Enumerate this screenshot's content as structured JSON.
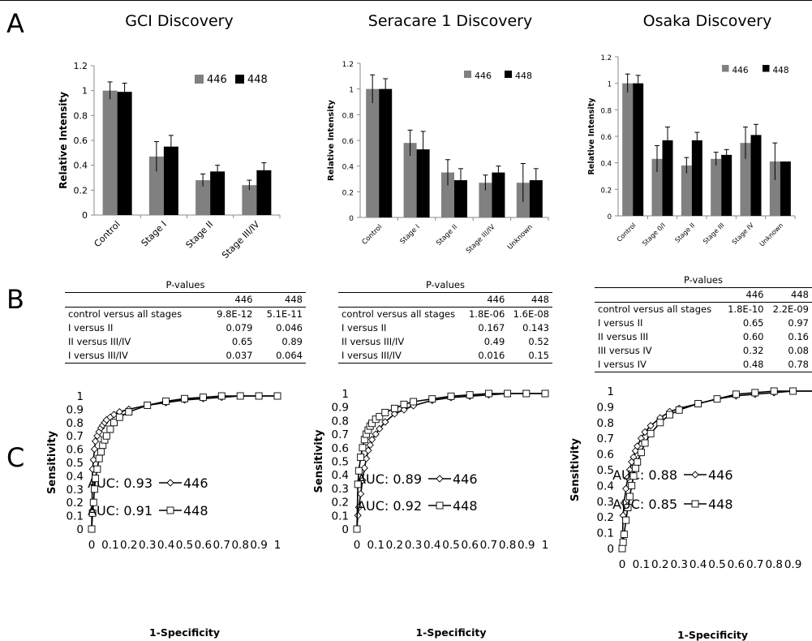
{
  "panels": {
    "A": "A",
    "B": "B",
    "C": "C"
  },
  "chart_data": [
    {
      "type": "bar",
      "title": "GCI Discovery",
      "ylabel": "Relative Intensity",
      "categories": [
        "Control",
        "Stage I",
        "Stage II",
        "Stage III/IV"
      ],
      "ylim": [
        0,
        1.2
      ],
      "yticks": [
        "0",
        "0.2",
        "0.4",
        "0.6",
        "0.8",
        "1",
        "1.2"
      ],
      "series": [
        {
          "name": "446",
          "color": "#808080",
          "values": [
            1.0,
            0.47,
            0.28,
            0.24
          ],
          "errors": [
            0.07,
            0.12,
            0.05,
            0.04
          ]
        },
        {
          "name": "448",
          "color": "#000000",
          "values": [
            0.99,
            0.55,
            0.35,
            0.36
          ],
          "errors": [
            0.07,
            0.09,
            0.05,
            0.06
          ]
        }
      ],
      "legend": "top-right"
    },
    {
      "type": "bar",
      "title": "Seracare 1 Discovery",
      "ylabel": "Relative Intensity",
      "categories": [
        "Control",
        "Stage I",
        "Stage II",
        "Stage III/IV",
        "Unknown"
      ],
      "ylim": [
        0,
        1.2
      ],
      "yticks": [
        "0",
        "0.2",
        "0.4",
        "0.6",
        "0.8",
        "1",
        "1.2"
      ],
      "series": [
        {
          "name": "446",
          "color": "#808080",
          "values": [
            1.0,
            0.58,
            0.35,
            0.27,
            0.27
          ],
          "errors": [
            0.11,
            0.1,
            0.1,
            0.06,
            0.15
          ]
        },
        {
          "name": "448",
          "color": "#000000",
          "values": [
            1.0,
            0.53,
            0.29,
            0.35,
            0.29
          ],
          "errors": [
            0.08,
            0.14,
            0.09,
            0.05,
            0.09
          ]
        }
      ],
      "legend": "top-right"
    },
    {
      "type": "bar",
      "title": "Osaka Discovery",
      "ylabel": "Relative Intensity",
      "categories": [
        "Control",
        "Stage 0/I",
        "Stage II",
        "Stage III",
        "Stage IV",
        "Unknown"
      ],
      "ylim": [
        0,
        1.2
      ],
      "yticks": [
        "0",
        "0.2",
        "0.4",
        "0.6",
        "0.8",
        "1",
        "1.2"
      ],
      "series": [
        {
          "name": "446",
          "color": "#808080",
          "values": [
            1.0,
            0.43,
            0.38,
            0.43,
            0.55,
            0.41
          ],
          "errors": [
            0.07,
            0.1,
            0.06,
            0.05,
            0.12,
            0.14
          ]
        },
        {
          "name": "448",
          "color": "#000000",
          "values": [
            1.0,
            0.57,
            0.57,
            0.46,
            0.61,
            0.41
          ],
          "errors": [
            0.06,
            0.1,
            0.06,
            0.04,
            0.08,
            0.0
          ]
        }
      ],
      "legend": "top-right"
    },
    {
      "type": "line",
      "xlabel": "1-Specificity",
      "ylabel": "Sensitivity",
      "xlim": [
        0,
        1
      ],
      "ylim": [
        0,
        1
      ],
      "xticks": [
        "0",
        "0.1",
        "0.2",
        "0.3",
        "0.4",
        "0.5",
        "0.6",
        "0.7",
        "0.8",
        "0.9",
        "1"
      ],
      "yticks": [
        "0",
        "0.1",
        "0.2",
        "0.3",
        "0.4",
        "0.5",
        "0.6",
        "0.7",
        "0.8",
        "0.9",
        "1"
      ],
      "series": [
        {
          "name": "446",
          "marker": "diamond",
          "auc_label": "AUC: 0.93",
          "x": [
            0,
            0.005,
            0.01,
            0.015,
            0.02,
            0.03,
            0.04,
            0.05,
            0.06,
            0.07,
            0.08,
            0.1,
            0.12,
            0.15,
            0.2,
            0.3,
            0.4,
            0.5,
            0.6,
            0.7,
            0.8,
            0.9,
            1
          ],
          "y": [
            0,
            0.45,
            0.52,
            0.6,
            0.66,
            0.7,
            0.73,
            0.76,
            0.78,
            0.8,
            0.82,
            0.84,
            0.86,
            0.88,
            0.9,
            0.93,
            0.95,
            0.97,
            0.98,
            0.99,
            1.0,
            1.0,
            1.0
          ]
        },
        {
          "name": "448",
          "marker": "square",
          "auc_label": "AUC: 0.91",
          "x": [
            0,
            0.005,
            0.01,
            0.015,
            0.02,
            0.03,
            0.04,
            0.05,
            0.06,
            0.07,
            0.08,
            0.1,
            0.12,
            0.15,
            0.2,
            0.3,
            0.4,
            0.5,
            0.6,
            0.7,
            0.8,
            0.9,
            1
          ],
          "y": [
            0,
            0.12,
            0.2,
            0.3,
            0.38,
            0.45,
            0.53,
            0.58,
            0.63,
            0.67,
            0.7,
            0.75,
            0.8,
            0.84,
            0.88,
            0.93,
            0.96,
            0.98,
            0.99,
            1.0,
            1.0,
            1.0,
            1.0
          ]
        }
      ]
    },
    {
      "type": "line",
      "xlabel": "1-Specificity",
      "ylabel": "Sensitivity",
      "xlim": [
        0,
        1
      ],
      "ylim": [
        0,
        1
      ],
      "xticks": [
        "0",
        "0.1",
        "0.2",
        "0.3",
        "0.4",
        "0.5",
        "0.6",
        "0.7",
        "0.8",
        "0.9",
        "1"
      ],
      "yticks": [
        "0",
        "0.1",
        "0.2",
        "0.3",
        "0.4",
        "0.5",
        "0.6",
        "0.7",
        "0.8",
        "0.9",
        "1"
      ],
      "series": [
        {
          "name": "446",
          "marker": "diamond",
          "auc_label": "AUC: 0.89",
          "x": [
            0,
            0.005,
            0.01,
            0.02,
            0.03,
            0.04,
            0.05,
            0.06,
            0.07,
            0.08,
            0.1,
            0.12,
            0.15,
            0.2,
            0.25,
            0.3,
            0.4,
            0.5,
            0.6,
            0.7,
            0.8,
            0.9,
            1
          ],
          "y": [
            0,
            0.1,
            0.16,
            0.26,
            0.36,
            0.45,
            0.52,
            0.58,
            0.62,
            0.66,
            0.7,
            0.74,
            0.79,
            0.85,
            0.88,
            0.91,
            0.95,
            0.97,
            0.98,
            0.99,
            1.0,
            1.0,
            1.0
          ]
        },
        {
          "name": "448",
          "marker": "square",
          "auc_label": "AUC: 0.92",
          "x": [
            0,
            0.005,
            0.01,
            0.02,
            0.03,
            0.04,
            0.05,
            0.06,
            0.07,
            0.08,
            0.1,
            0.12,
            0.15,
            0.2,
            0.25,
            0.3,
            0.4,
            0.5,
            0.6,
            0.7,
            0.8,
            0.9,
            1
          ],
          "y": [
            0,
            0.33,
            0.43,
            0.53,
            0.6,
            0.66,
            0.7,
            0.73,
            0.76,
            0.78,
            0.81,
            0.83,
            0.86,
            0.89,
            0.92,
            0.94,
            0.96,
            0.98,
            0.99,
            1.0,
            1.0,
            1.0,
            1.0
          ]
        }
      ]
    },
    {
      "type": "line",
      "xlabel": "1-Specificity",
      "ylabel": "Sensitivity",
      "xlim": [
        0,
        1
      ],
      "ylim": [
        0,
        1
      ],
      "xticks": [
        "0",
        "0.1",
        "0.2",
        "0.3",
        "0.4",
        "0.5",
        "0.6",
        "0.7",
        "0.8",
        "0.9"
      ],
      "yticks": [
        "0",
        "0.1",
        "0.2",
        "0.3",
        "0.4",
        "0.5",
        "0.6",
        "0.7",
        "0.8",
        "0.9",
        "1"
      ],
      "series": [
        {
          "name": "446",
          "marker": "diamond",
          "auc_label": "AUC: 0.88",
          "x": [
            0,
            0.005,
            0.01,
            0.02,
            0.03,
            0.04,
            0.05,
            0.06,
            0.07,
            0.08,
            0.1,
            0.12,
            0.15,
            0.2,
            0.25,
            0.3,
            0.4,
            0.5,
            0.6,
            0.7,
            0.8,
            0.9,
            1
          ],
          "y": [
            0,
            0.21,
            0.29,
            0.38,
            0.45,
            0.5,
            0.55,
            0.58,
            0.62,
            0.65,
            0.7,
            0.74,
            0.78,
            0.83,
            0.87,
            0.89,
            0.92,
            0.95,
            0.97,
            0.98,
            0.99,
            1.0,
            1.0
          ]
        },
        {
          "name": "448",
          "marker": "square",
          "auc_label": "AUC: 0.85",
          "x": [
            0,
            0.005,
            0.01,
            0.02,
            0.03,
            0.04,
            0.05,
            0.06,
            0.07,
            0.08,
            0.1,
            0.12,
            0.15,
            0.2,
            0.25,
            0.3,
            0.4,
            0.5,
            0.6,
            0.7,
            0.8,
            0.9,
            1
          ],
          "y": [
            0,
            0.04,
            0.09,
            0.18,
            0.26,
            0.33,
            0.4,
            0.46,
            0.51,
            0.55,
            0.61,
            0.67,
            0.73,
            0.8,
            0.85,
            0.88,
            0.92,
            0.95,
            0.98,
            0.99,
            1.0,
            1.0,
            1.0
          ]
        }
      ]
    }
  ],
  "pvalue_tables": [
    {
      "caption": "P-values",
      "columns": [
        "",
        "446",
        "448"
      ],
      "rows": [
        [
          "control versus all stages",
          "9.8E-12",
          "5.1E-11"
        ],
        [
          "I versus II",
          "0.079",
          "0.046"
        ],
        [
          "II versus III/IV",
          "0.65",
          "0.89"
        ],
        [
          "I versus III/IV",
          "0.037",
          "0.064"
        ]
      ]
    },
    {
      "caption": "P-values",
      "columns": [
        "",
        "446",
        "448"
      ],
      "rows": [
        [
          "control versus all stages",
          "1.8E-06",
          "1.6E-08"
        ],
        [
          "I versus II",
          "0.167",
          "0.143"
        ],
        [
          "II versus III/IV",
          "0.49",
          "0.52"
        ],
        [
          "I versus III/IV",
          "0.016",
          "0.15"
        ]
      ]
    },
    {
      "caption": "P-values",
      "columns": [
        "",
        "446",
        "448"
      ],
      "rows": [
        [
          "control versus all stages",
          "1.8E-10",
          "2.2E-09"
        ],
        [
          "I versus II",
          "0.65",
          "0.97"
        ],
        [
          "II versus III",
          "0.60",
          "0.16"
        ],
        [
          "III versus IV",
          "0.32",
          "0.08"
        ],
        [
          "I versus IV",
          "0.48",
          "0.78"
        ]
      ]
    }
  ]
}
